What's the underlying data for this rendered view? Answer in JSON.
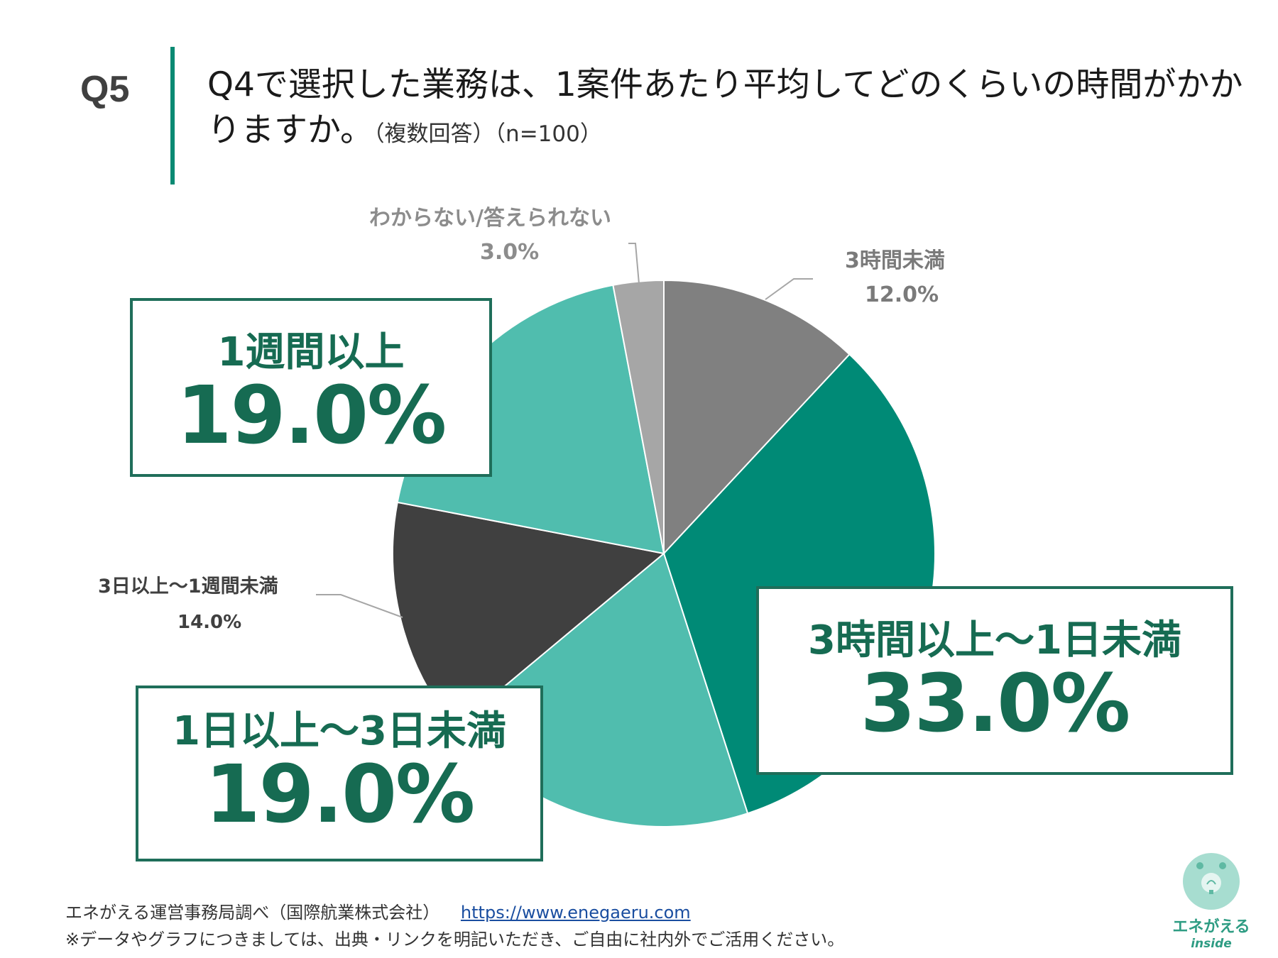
{
  "header": {
    "qnum": "Q5",
    "question": "Q4で選択した業務は、1案件あたり平均してどのくらいの時間がかかりますか。",
    "note": "（複数回答）（n=100）"
  },
  "chart_data": {
    "type": "pie",
    "categories": [
      "3時間未満",
      "3時間以上～1日未満",
      "1日以上～3日未満",
      "3日以上～1週間未満",
      "1週間以上",
      "わからない/答えられない"
    ],
    "values": [
      12.0,
      33.0,
      19.0,
      14.0,
      19.0,
      3.0
    ],
    "labels": [
      "12.0%",
      "33.0%",
      "19.0%",
      "14.0%",
      "19.0%",
      "3.0%"
    ],
    "colors": [
      "#808080",
      "#008a76",
      "#50bdae",
      "#404040",
      "#50bdae",
      "#a6a6a6"
    ],
    "start": "12 o'clock",
    "direction": "clockwise"
  },
  "footer": {
    "source": "エネがえる運営事務局調べ（国際航業株式会社）",
    "url": "https://www.enegaeru.com",
    "disclaimer": "※データやグラフにつきましては、出典・リンクを明記いただき、ご自由に社内外でご活用ください。"
  },
  "logo": {
    "name": "エネがえる",
    "sub": "inside"
  }
}
